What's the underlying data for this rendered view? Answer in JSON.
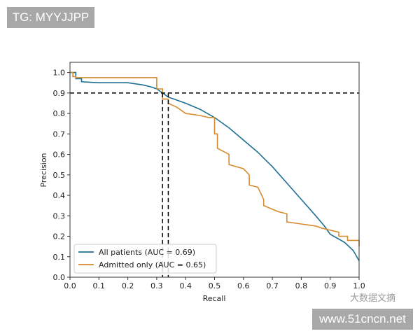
{
  "watermarks": {
    "top_left": "TG: MYYJJPP",
    "bottom_right": "www.51cncn.net",
    "overlay_text": "大数据文摘"
  },
  "chart_data": {
    "type": "line",
    "title": "",
    "xlabel": "Recall",
    "ylabel": "Precision",
    "xlim": [
      0.0,
      1.0
    ],
    "ylim": [
      0.0,
      1.05
    ],
    "xticks": [
      "0.0",
      "0.1",
      "0.2",
      "0.3",
      "0.4",
      "0.5",
      "0.6",
      "0.7",
      "0.8",
      "0.9",
      "1.0"
    ],
    "yticks": [
      "0.0",
      "0.1",
      "0.2",
      "0.3",
      "0.4",
      "0.5",
      "0.6",
      "0.7",
      "0.8",
      "0.9",
      "1.0"
    ],
    "grid": false,
    "legend_position": "bottom-left",
    "series": [
      {
        "name": "All patients (AUC = 0.69)",
        "color": "#1f6f93",
        "x": [
          0.0,
          0.02,
          0.02,
          0.04,
          0.04,
          0.1,
          0.2,
          0.25,
          0.28,
          0.3,
          0.32,
          0.34,
          0.36,
          0.4,
          0.45,
          0.5,
          0.55,
          0.6,
          0.65,
          0.7,
          0.75,
          0.8,
          0.85,
          0.88,
          0.9,
          0.95,
          0.98,
          1.0
        ],
        "y": [
          1.0,
          1.0,
          0.97,
          0.97,
          0.955,
          0.95,
          0.95,
          0.94,
          0.93,
          0.92,
          0.9,
          0.88,
          0.87,
          0.85,
          0.82,
          0.78,
          0.73,
          0.67,
          0.61,
          0.54,
          0.46,
          0.38,
          0.3,
          0.25,
          0.21,
          0.17,
          0.13,
          0.08
        ]
      },
      {
        "name": "Admitted only (AUC = 0.65)",
        "color": "#d68a2e",
        "x": [
          0.0,
          0.01,
          0.01,
          0.02,
          0.02,
          0.3,
          0.3,
          0.32,
          0.32,
          0.34,
          0.34,
          0.37,
          0.4,
          0.45,
          0.48,
          0.5,
          0.5,
          0.51,
          0.51,
          0.55,
          0.55,
          0.6,
          0.62,
          0.62,
          0.65,
          0.67,
          0.67,
          0.72,
          0.75,
          0.75,
          0.8,
          0.85,
          0.87,
          0.9,
          0.93,
          0.93,
          0.96,
          0.96,
          1.0,
          1.0
        ],
        "y": [
          1.0,
          1.0,
          0.98,
          0.98,
          0.975,
          0.975,
          0.92,
          0.92,
          0.87,
          0.87,
          0.85,
          0.83,
          0.8,
          0.79,
          0.78,
          0.78,
          0.7,
          0.7,
          0.63,
          0.6,
          0.55,
          0.53,
          0.5,
          0.45,
          0.44,
          0.38,
          0.35,
          0.32,
          0.31,
          0.27,
          0.26,
          0.25,
          0.24,
          0.23,
          0.22,
          0.2,
          0.2,
          0.18,
          0.18,
          0.15
        ]
      }
    ],
    "reference_lines": [
      {
        "orientation": "horizontal",
        "value": 0.9,
        "style": "dashed",
        "color": "#000000"
      },
      {
        "orientation": "vertical",
        "value": 0.32,
        "ymax": 0.9,
        "style": "dashed",
        "color": "#000000"
      },
      {
        "orientation": "vertical",
        "value": 0.34,
        "ymax": 0.9,
        "style": "dashed",
        "color": "#000000"
      }
    ]
  }
}
